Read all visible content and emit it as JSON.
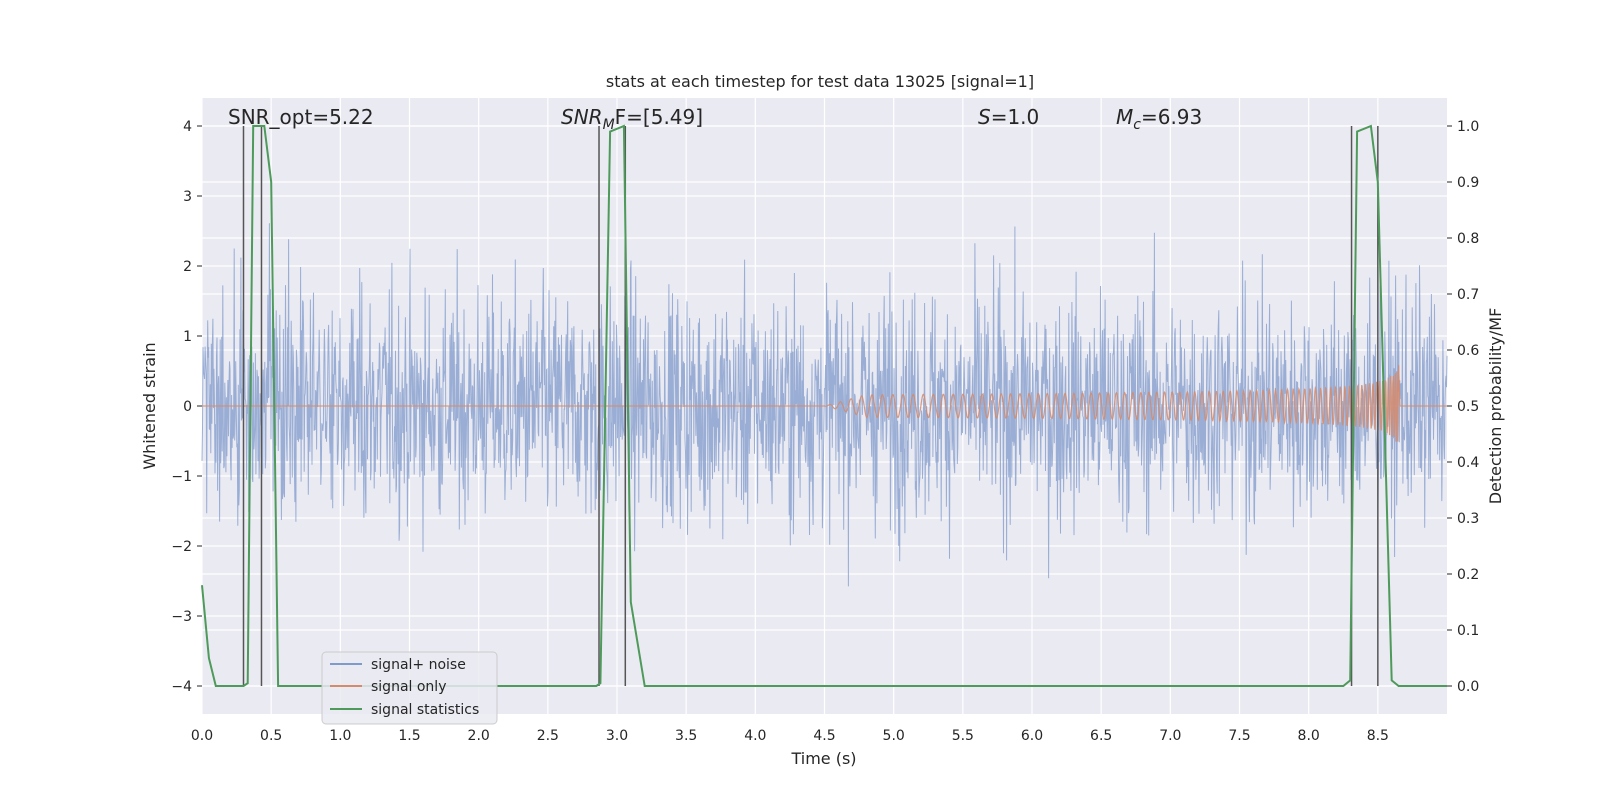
{
  "chart_data": {
    "type": "line",
    "title": "stats at each timestep for test data 13025 [signal=1]",
    "xlabel": "Time (s)",
    "ylabel": "Whitened strain",
    "y2label": "Detection probability/MF",
    "xlim": [
      0,
      9
    ],
    "ylim": [
      -4.4,
      4.4
    ],
    "y2lim": [
      -0.05,
      1.05
    ],
    "xticks": [
      "0.0",
      "0.5",
      "1.0",
      "1.5",
      "2.0",
      "2.5",
      "3.0",
      "3.5",
      "4.0",
      "4.5",
      "5.0",
      "5.5",
      "6.0",
      "6.5",
      "7.0",
      "7.5",
      "8.0",
      "8.5"
    ],
    "yticks": [
      "−4",
      "−3",
      "−2",
      "−1",
      "0",
      "1",
      "2",
      "3",
      "4"
    ],
    "y2ticks": [
      "0.0",
      "0.1",
      "0.2",
      "0.3",
      "0.4",
      "0.5",
      "0.6",
      "0.7",
      "0.8",
      "0.9",
      "1.0"
    ],
    "grid": true,
    "legend_position": "lower-left",
    "annotations": {
      "snr_opt": "SNR_opt=5.22",
      "snr_mf_base": "SNR",
      "snr_mf_sub": "M",
      "snr_mf_rest": "F=[5.49]",
      "s_base": "S",
      "s_rest": "=1.0",
      "mc_base": "M",
      "mc_sub": "c",
      "mc_rest": "=6.93"
    },
    "series": [
      {
        "name": "signal+ noise",
        "color": "#7f9acb",
        "description_range": [
          -4.0,
          4.0
        ]
      },
      {
        "name": "signal only",
        "color": "#d48a6c",
        "chirp_start": 4.5,
        "chirp_end": 8.65,
        "peak_amplitude": 0.6
      },
      {
        "name": "signal statistics",
        "color": "#4e9a5a",
        "x": [
          0.0,
          0.05,
          0.1,
          0.2,
          0.3,
          0.33,
          0.37,
          0.45,
          0.5,
          0.55,
          2.85,
          2.88,
          2.95,
          3.05,
          3.1,
          3.2,
          8.25,
          8.3,
          8.35,
          8.45,
          8.5,
          8.6,
          8.65,
          9.0
        ],
        "values": [
          0.18,
          0.05,
          0.0,
          0.0,
          0.0,
          0.005,
          1.0,
          1.0,
          0.9,
          0.0,
          0.0,
          0.005,
          0.99,
          1.0,
          0.15,
          0.0,
          0.0,
          0.01,
          0.99,
          1.0,
          0.9,
          0.01,
          0.0,
          0.0
        ]
      }
    ],
    "vlines": [
      0.3,
      0.43,
      2.87,
      3.06,
      8.31,
      8.5
    ],
    "vline_color": "#555555"
  }
}
